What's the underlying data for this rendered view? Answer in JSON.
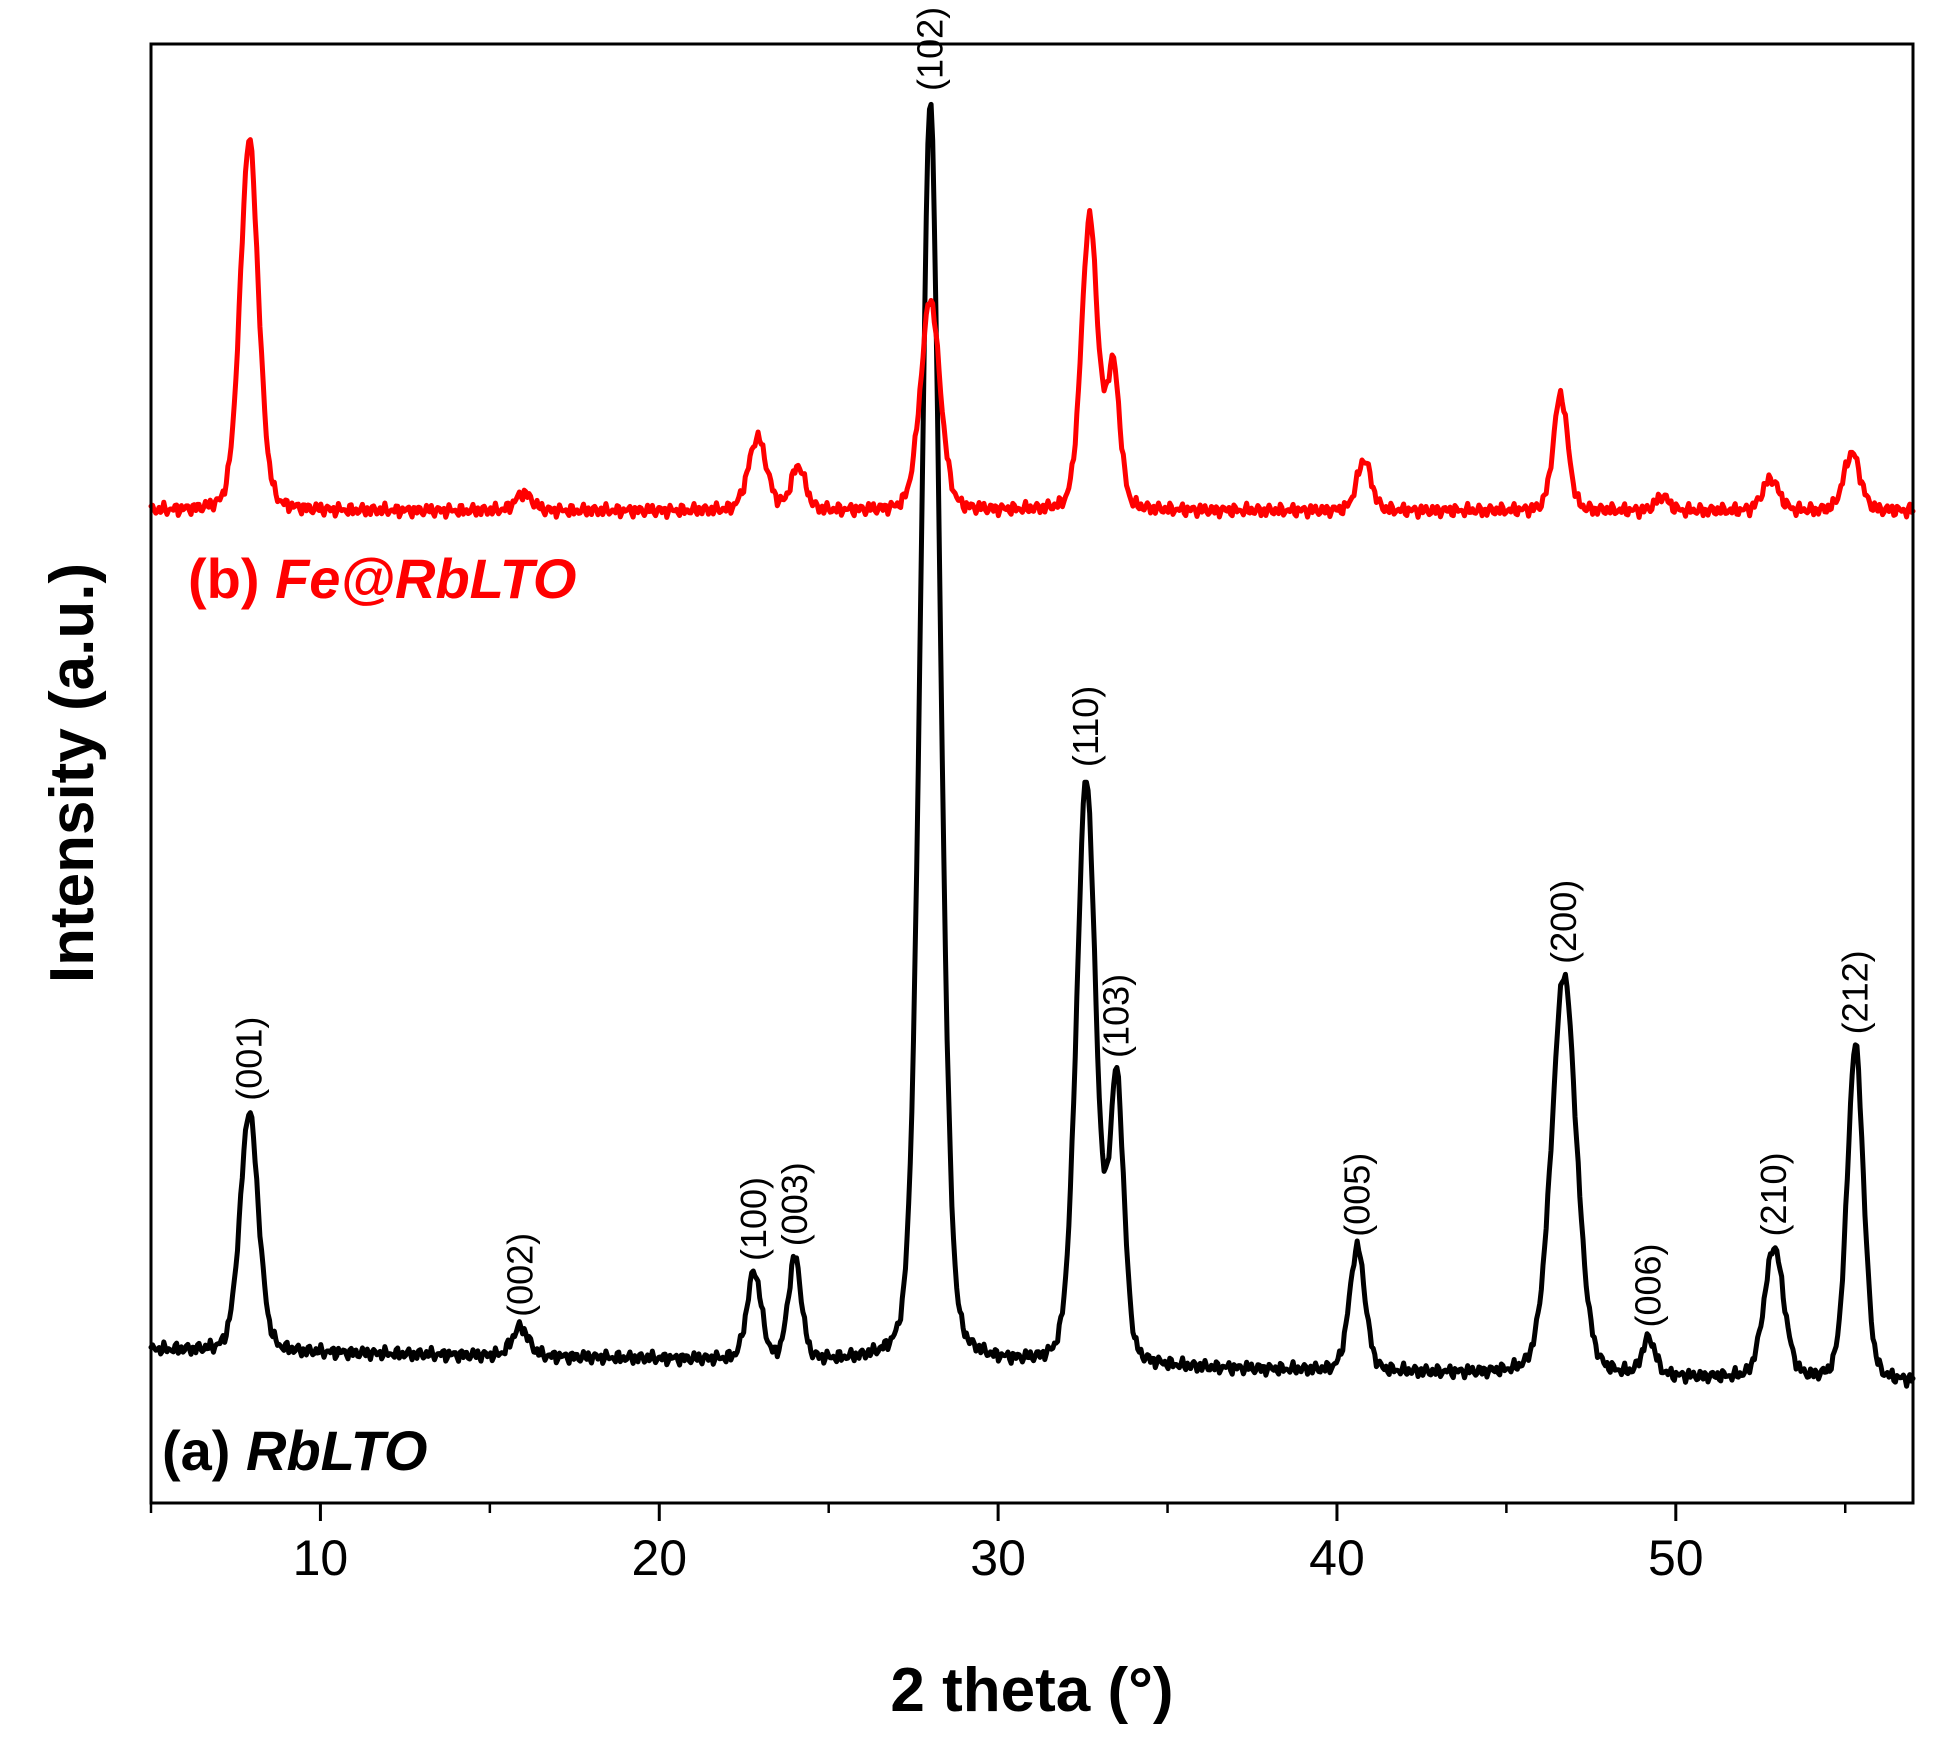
{
  "chart_data": {
    "type": "line",
    "title": "",
    "xlabel": "2 theta (°)",
    "ylabel": "Intensity (a.u.)",
    "xlim": [
      5,
      57
    ],
    "ylim": [
      0,
      1
    ],
    "x_ticks": [
      10,
      20,
      30,
      40,
      50
    ],
    "x_minor_ticks": [
      5,
      15,
      25,
      35,
      45,
      55
    ],
    "y_ticks": [],
    "grid": false,
    "series": [
      {
        "name": "(a) RbLTO",
        "label_prefix": "(a) ",
        "label_name": "RbLTO",
        "color": "#000000",
        "baseline": 0.088,
        "start_y": 0.105,
        "end_y": 0.083,
        "peaks": [
          {
            "x": 7.9,
            "height": 0.165,
            "width": 0.28,
            "hkl": "(001)"
          },
          {
            "x": 15.9,
            "height": 0.02,
            "width": 0.25,
            "hkl": "(002)"
          },
          {
            "x": 22.8,
            "height": 0.06,
            "width": 0.22,
            "hkl": "(100)"
          },
          {
            "x": 24.0,
            "height": 0.07,
            "width": 0.2,
            "hkl": "(003)"
          },
          {
            "x": 28.0,
            "height": 0.865,
            "width": 0.3,
            "hkl": "(102)"
          },
          {
            "x": 32.6,
            "height": 0.4,
            "width": 0.3,
            "hkl": "(110)"
          },
          {
            "x": 33.5,
            "height": 0.19,
            "width": 0.22,
            "hkl": "(103)"
          },
          {
            "x": 40.6,
            "height": 0.085,
            "width": 0.24,
            "hkl": "(005)"
          },
          {
            "x": 46.7,
            "height": 0.275,
            "width": 0.38,
            "hkl": "(200)"
          },
          {
            "x": 49.2,
            "height": 0.025,
            "width": 0.2,
            "hkl": "(006)"
          },
          {
            "x": 52.9,
            "height": 0.09,
            "width": 0.3,
            "hkl": "(210)"
          },
          {
            "x": 55.3,
            "height": 0.23,
            "width": 0.25,
            "hkl": "(212)"
          }
        ]
      },
      {
        "name": "(b) Fe@RbLTO",
        "label_prefix": "(b) ",
        "label_name": "Fe@RbLTO",
        "color": "#ff0000",
        "baseline": 0.678,
        "start_y": 0.68,
        "end_y": 0.68,
        "peaks": [
          {
            "x": 7.9,
            "height": 0.255,
            "width": 0.28
          },
          {
            "x": 16.0,
            "height": 0.012,
            "width": 0.25
          },
          {
            "x": 22.9,
            "height": 0.05,
            "width": 0.28
          },
          {
            "x": 24.1,
            "height": 0.03,
            "width": 0.22
          },
          {
            "x": 28.0,
            "height": 0.145,
            "width": 0.3
          },
          {
            "x": 32.7,
            "height": 0.2,
            "width": 0.25
          },
          {
            "x": 33.4,
            "height": 0.095,
            "width": 0.2
          },
          {
            "x": 40.8,
            "height": 0.035,
            "width": 0.22
          },
          {
            "x": 46.6,
            "height": 0.08,
            "width": 0.22
          },
          {
            "x": 49.6,
            "height": 0.01,
            "width": 0.2
          },
          {
            "x": 52.8,
            "height": 0.022,
            "width": 0.25
          },
          {
            "x": 55.2,
            "height": 0.04,
            "width": 0.25
          }
        ]
      }
    ]
  }
}
